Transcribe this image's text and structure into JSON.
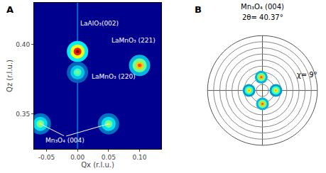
{
  "chart_data": [
    {
      "type": "scatter",
      "panel": "A",
      "x_label": "Qx (r.l.u.)",
      "y_label": "Qz (r.l.u.)",
      "x": [
        0.0,
        0.1,
        0.0,
        -0.06,
        0.05
      ],
      "y": [
        0.395,
        0.385,
        0.38,
        0.343,
        0.343
      ],
      "intensity": [
        1.0,
        0.8,
        0.5,
        0.55,
        0.55
      ],
      "intensity_lim": [
        0,
        1
      ],
      "xlim": [
        -0.07,
        0.135
      ],
      "ylim": [
        0.325,
        0.43
      ],
      "xticks": [
        -0.05,
        {
          "value": 0,
          "label": "0.00"
        },
        0.05,
        {
          "value": 0.1,
          "label": "0.10"
        }
      ],
      "yticks": [
        0.35,
        {
          "value": 0.4,
          "label": "0.40"
        }
      ],
      "annotations": [
        {
          "text": "LaAlO₃(002)",
          "x": 0.035,
          "y": 0.415
        },
        {
          "text": "LaMnO₃ (221)",
          "x": 0.09,
          "y": 0.403
        },
        {
          "text": "LaMnO₃ (220)",
          "x": 0.058,
          "y": 0.377
        },
        {
          "text": "Mn₃O₄ (004)",
          "x": -0.02,
          "y": 0.331,
          "arrows_to": [
            [
              -0.06,
              0.343
            ],
            [
              0.05,
              0.343
            ]
          ]
        }
      ],
      "grid": false
    },
    {
      "type": "polar",
      "panel": "B",
      "title": "Mn₃O₄ (004)",
      "subtitle": "2θ= 40.37°",
      "r": [
        22,
        22,
        22,
        22
      ],
      "theta": [
        0,
        95,
        180,
        270
      ],
      "intensity": [
        0.7,
        0.8,
        0.7,
        0.8
      ],
      "intensity_lim": [
        0,
        1
      ],
      "rlim": [
        0,
        90
      ],
      "rticks": [
        10,
        20,
        30,
        40,
        50,
        60,
        70,
        80,
        90
      ],
      "thetaticks": [
        0,
        90,
        180,
        270
      ],
      "annotations": [
        {
          "text": "χ= 9°"
        }
      ],
      "tick_labels": false,
      "grid": true
    }
  ]
}
